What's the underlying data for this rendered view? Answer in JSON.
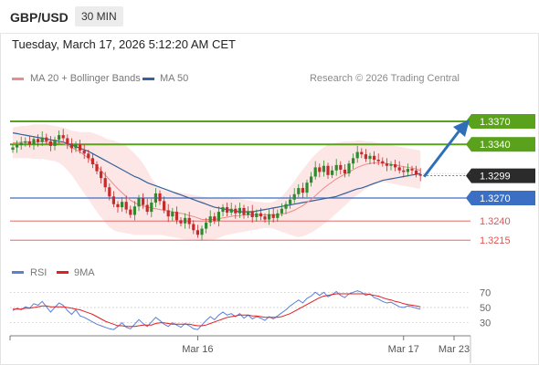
{
  "header": {
    "symbol": "GBP/USD",
    "timeframe": "30 MIN"
  },
  "timestamp": "Tuesday, March 17, 2026 5:12:20 AM CET",
  "legend": {
    "ma20": "MA 20 + Bollinger Bands",
    "ma50": "MA 50",
    "ma20_color": "#f08a8a",
    "ma50_color": "#35629b",
    "credit": "Research © 2026 Trading Central"
  },
  "rsi_legend": {
    "rsi": "RSI",
    "ma": "9MA",
    "rsi_color": "#5a7fd6",
    "ma_color": "#e02020"
  },
  "colors": {
    "green": "#5aa21c",
    "blue": "#3a6fc4",
    "red_level": "#e05555",
    "arrow": "#2f6fb8"
  },
  "chart_data": {
    "type": "candlestick",
    "pair": "GBP/USD",
    "y_range": [
      1.3195,
      1.3395
    ],
    "levels": [
      {
        "value": 1.337,
        "label": "1.3370",
        "style": "resistance-green"
      },
      {
        "value": 1.334,
        "label": "1.3340",
        "style": "resistance-green"
      },
      {
        "value": 1.327,
        "label": "1.3270",
        "style": "support-blue"
      },
      {
        "value": 1.324,
        "label": "1.3240",
        "style": "support-red"
      },
      {
        "value": 1.3215,
        "label": "1.3215",
        "style": "support-red"
      }
    ],
    "last_price": {
      "value": 1.3299,
      "label": "1.3299"
    },
    "x_labels": [
      {
        "label": "Mar 16",
        "index": 44
      },
      {
        "label": "Mar 17",
        "index": 93
      },
      {
        "label": "Mar 23",
        "index": 114
      }
    ],
    "closes": [
      1.3336,
      1.3339,
      1.3342,
      1.3344,
      1.334,
      1.3347,
      1.3343,
      1.3349,
      1.3344,
      1.3338,
      1.3346,
      1.3352,
      1.3348,
      1.3341,
      1.3335,
      1.334,
      1.3332,
      1.3328,
      1.3322,
      1.3314,
      1.3305,
      1.3296,
      1.3284,
      1.3272,
      1.3262,
      1.3258,
      1.3265,
      1.3255,
      1.3248,
      1.3259,
      1.327,
      1.3261,
      1.3252,
      1.3264,
      1.3276,
      1.3266,
      1.3254,
      1.3246,
      1.3252,
      1.3241,
      1.3237,
      1.3244,
      1.3236,
      1.3228,
      1.3222,
      1.323,
      1.3238,
      1.3246,
      1.324,
      1.3252,
      1.3258,
      1.3251,
      1.3256,
      1.325,
      1.3257,
      1.3248,
      1.3253,
      1.3245,
      1.325,
      1.3246,
      1.3242,
      1.3249,
      1.3244,
      1.325,
      1.3256,
      1.3262,
      1.3268,
      1.3275,
      1.3283,
      1.3277,
      1.329,
      1.3298,
      1.331,
      1.3304,
      1.3312,
      1.33,
      1.3306,
      1.3313,
      1.3307,
      1.3302,
      1.3315,
      1.3322,
      1.333,
      1.3327,
      1.3321,
      1.3325,
      1.332,
      1.3318,
      1.3315,
      1.3312,
      1.3314,
      1.331,
      1.3306,
      1.3304,
      1.3308,
      1.3306,
      1.3301,
      1.3299
    ],
    "ma20": [
      1.3342,
      1.3342,
      1.3343,
      1.3343,
      1.3343,
      1.3343,
      1.3343,
      1.3344,
      1.3343,
      1.3342,
      1.3342,
      1.3342,
      1.3341,
      1.3339,
      1.3336,
      1.3333,
      1.333,
      1.3326,
      1.3322,
      1.3317,
      1.3312,
      1.3306,
      1.33,
      1.3294,
      1.3288,
      1.3282,
      1.3277,
      1.3272,
      1.3267,
      1.3264,
      1.3261,
      1.326,
      1.3258,
      1.3257,
      1.3256,
      1.3255,
      1.3254,
      1.3253,
      1.3252,
      1.3251,
      1.325,
      1.3249,
      1.3247,
      1.3246,
      1.3244,
      1.3242,
      1.3242,
      1.3242,
      1.3242,
      1.3243,
      1.3244,
      1.3245,
      1.3246,
      1.3247,
      1.3247,
      1.3248,
      1.3248,
      1.3248,
      1.3248,
      1.3248,
      1.3248,
      1.3248,
      1.3248,
      1.3248,
      1.3249,
      1.325,
      1.3252,
      1.3254,
      1.3257,
      1.326,
      1.3264,
      1.3268,
      1.3273,
      1.3278,
      1.3283,
      1.3287,
      1.3291,
      1.3295,
      1.3298,
      1.3301,
      1.3304,
      1.3307,
      1.331,
      1.3312,
      1.3314,
      1.3315,
      1.3316,
      1.3316,
      1.3316,
      1.3315,
      1.3314,
      1.3313,
      1.3312,
      1.3311,
      1.331,
      1.3309,
      1.3308,
      1.3306
    ],
    "ma50": [
      1.3355,
      1.3354,
      1.3353,
      1.3352,
      1.3351,
      1.335,
      1.3349,
      1.3348,
      1.3347,
      1.3346,
      1.3345,
      1.3344,
      1.3343,
      1.3341,
      1.3339,
      1.3337,
      1.3335,
      1.3333,
      1.3331,
      1.3328,
      1.3325,
      1.3322,
      1.3319,
      1.3316,
      1.3313,
      1.331,
      1.3307,
      1.3304,
      1.3301,
      1.3298,
      1.3296,
      1.3293,
      1.329,
      1.3288,
      1.3286,
      1.3284,
      1.3282,
      1.328,
      1.3278,
      1.3276,
      1.3274,
      1.3272,
      1.327,
      1.3268,
      1.3266,
      1.3264,
      1.3262,
      1.326,
      1.3258,
      1.3257,
      1.3256,
      1.3255,
      1.3254,
      1.3253,
      1.3252,
      1.3252,
      1.3252,
      1.3252,
      1.3253,
      1.3254,
      1.3255,
      1.3256,
      1.3257,
      1.3258,
      1.3259,
      1.326,
      1.3261,
      1.3262,
      1.3263,
      1.3264,
      1.3265,
      1.3266,
      1.3267,
      1.3268,
      1.3269,
      1.327,
      1.3271,
      1.3272,
      1.3274,
      1.3276,
      1.3278,
      1.328,
      1.3282,
      1.3283,
      1.3285,
      1.3287,
      1.3289,
      1.3291,
      1.3293,
      1.3294,
      1.3295,
      1.3296,
      1.3297,
      1.3298,
      1.3299,
      1.33,
      1.3301,
      1.3302
    ],
    "bb_upper": [
      1.3362,
      1.3363,
      1.3364,
      1.3364,
      1.3365,
      1.3366,
      1.3366,
      1.3366,
      1.3366,
      1.3365,
      1.3364,
      1.3363,
      1.3362,
      1.336,
      1.3358,
      1.3357,
      1.3356,
      1.3356,
      1.3356,
      1.3355,
      1.3353,
      1.3351,
      1.3348,
      1.3346,
      1.3345,
      1.3343,
      1.3341,
      1.3338,
      1.3333,
      1.3328,
      1.3322,
      1.3315,
      1.3306,
      1.3296,
      1.3288,
      1.3283,
      1.328,
      1.3279,
      1.3278,
      1.3278,
      1.3277,
      1.3276,
      1.3275,
      1.3274,
      1.3273,
      1.3272,
      1.3271,
      1.327,
      1.327,
      1.327,
      1.327,
      1.327,
      1.327,
      1.327,
      1.3269,
      1.3268,
      1.3267,
      1.3266,
      1.3265,
      1.3265,
      1.3264,
      1.3264,
      1.3265,
      1.3268,
      1.3272,
      1.3278,
      1.3285,
      1.3292,
      1.33,
      1.3307,
      1.3314,
      1.3321,
      1.3327,
      1.3332,
      1.3336,
      1.3339,
      1.3341,
      1.3342,
      1.3343,
      1.3344,
      1.3344,
      1.3344,
      1.3345,
      1.3345,
      1.3344,
      1.3344,
      1.3343,
      1.3342,
      1.3341,
      1.334,
      1.3339,
      1.3338,
      1.3337,
      1.3336,
      1.3335,
      1.3334,
      1.3333,
      1.3332
    ],
    "bb_lower": [
      1.3322,
      1.3322,
      1.3322,
      1.3322,
      1.3322,
      1.3321,
      1.3321,
      1.3321,
      1.332,
      1.3319,
      1.3318,
      1.3316,
      1.3312,
      1.3306,
      1.33,
      1.3292,
      1.3284,
      1.3276,
      1.3268,
      1.326,
      1.3252,
      1.3245,
      1.3238,
      1.3232,
      1.3228,
      1.3226,
      1.3225,
      1.3224,
      1.3223,
      1.3222,
      1.3222,
      1.3222,
      1.3222,
      1.3222,
      1.3222,
      1.3222,
      1.3221,
      1.322,
      1.3219,
      1.3218,
      1.3217,
      1.3216,
      1.3216,
      1.3215,
      1.3214,
      1.3214,
      1.3214,
      1.3215,
      1.3216,
      1.3218,
      1.322,
      1.3222,
      1.3223,
      1.3224,
      1.3225,
      1.3226,
      1.3227,
      1.3228,
      1.3229,
      1.323,
      1.3231,
      1.3231,
      1.323,
      1.3228,
      1.3226,
      1.3224,
      1.3222,
      1.322,
      1.3219,
      1.322,
      1.3222,
      1.3225,
      1.3228,
      1.3232,
      1.3236,
      1.324,
      1.3245,
      1.325,
      1.3255,
      1.326,
      1.3265,
      1.327,
      1.3274,
      1.3278,
      1.3282,
      1.3285,
      1.3288,
      1.329,
      1.3291,
      1.329,
      1.3289,
      1.3288,
      1.3287,
      1.3286,
      1.3285,
      1.3284,
      1.3283,
      1.3282
    ],
    "rsi": {
      "y_range": [
        0,
        100
      ],
      "ticks": [
        70,
        50,
        30
      ],
      "rsi": [
        46,
        49,
        47,
        51,
        49,
        55,
        53,
        58,
        51,
        44,
        50,
        56,
        53,
        46,
        41,
        47,
        39,
        37,
        34,
        31,
        28,
        26,
        24,
        22,
        21,
        25,
        30,
        24,
        22,
        28,
        34,
        29,
        25,
        31,
        37,
        33,
        28,
        25,
        30,
        27,
        24,
        29,
        26,
        22,
        21,
        27,
        33,
        38,
        34,
        40,
        44,
        40,
        42,
        38,
        42,
        36,
        40,
        35,
        38,
        36,
        33,
        38,
        35,
        39,
        43,
        47,
        52,
        56,
        60,
        56,
        62,
        65,
        70,
        66,
        70,
        64,
        67,
        71,
        66,
        63,
        68,
        70,
        72,
        70,
        66,
        68,
        63,
        61,
        58,
        56,
        57,
        54,
        51,
        50,
        52,
        51,
        49,
        48
      ],
      "ma": [
        48,
        48,
        48,
        49,
        49,
        50,
        51,
        52,
        52,
        51,
        51,
        51,
        51,
        50,
        49,
        48,
        47,
        45,
        43,
        41,
        38,
        35,
        32,
        30,
        28,
        26,
        26,
        25,
        25,
        25,
        26,
        27,
        27,
        27,
        29,
        30,
        30,
        29,
        28,
        28,
        28,
        28,
        28,
        27,
        26,
        26,
        27,
        29,
        31,
        33,
        35,
        37,
        38,
        39,
        40,
        40,
        40,
        39,
        39,
        38,
        37,
        37,
        37,
        37,
        38,
        40,
        42,
        45,
        48,
        51,
        54,
        57,
        60,
        63,
        65,
        66,
        67,
        68,
        68,
        68,
        68,
        68,
        68,
        68,
        68,
        67,
        66,
        65,
        63,
        61,
        60,
        58,
        57,
        55,
        54,
        53,
        52,
        51
      ]
    }
  }
}
